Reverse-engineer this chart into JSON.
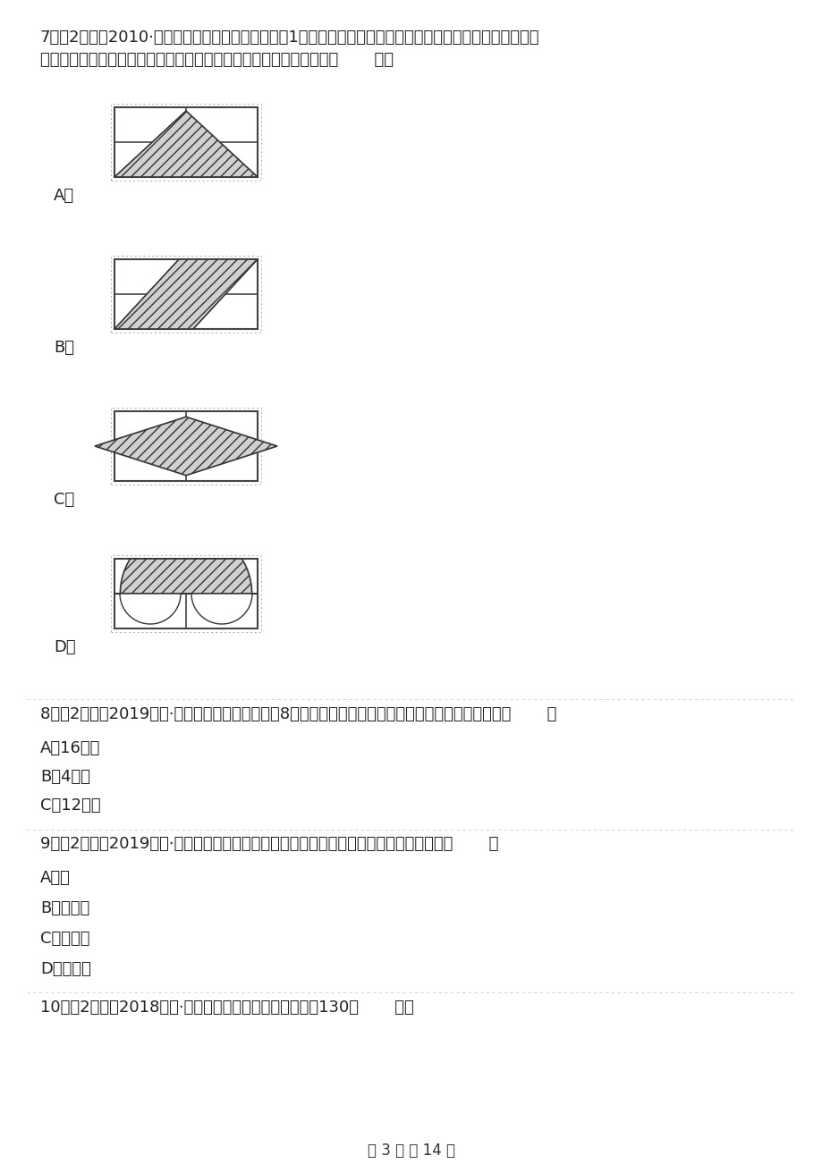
{
  "bg_color": "#ffffff",
  "q7_text1": "7．（2分）（2010·安徽）某正方形园地是由边长为1米的四个小正方形组成的，现要在园地上建一个花坛（阴",
  "q7_text2": "影部分）使花坛面积是园地面积的一半，以下图中设计不合要求的是（       ）．",
  "q8_text": "8．（2分）（2019三上·陇南月考）两个周长都是8厘米的正方形拼成一个长方形，这个长方形的周长（       ）",
  "q8_A": "A．16厘米",
  "q8_B": "B．4厘米",
  "q8_C": "C．12厘米",
  "q9_text": "9．（2分）（2019六上·铜仁期末）在下面周长都相等的四种图形中，面积最大的图形是（       ）",
  "q9_A": "A．圆",
  "q9_B": "B．正方形",
  "q9_C": "C．长方形",
  "q9_D": "D．三角形",
  "q10_text": "10．（2分）（2018三下·云南月考）小华家的住房面积是130（       ）。",
  "footer": "第 3 页 共 14 页",
  "label_A": "A．",
  "label_B": "B．",
  "label_C": "C．",
  "label_D": "D．"
}
